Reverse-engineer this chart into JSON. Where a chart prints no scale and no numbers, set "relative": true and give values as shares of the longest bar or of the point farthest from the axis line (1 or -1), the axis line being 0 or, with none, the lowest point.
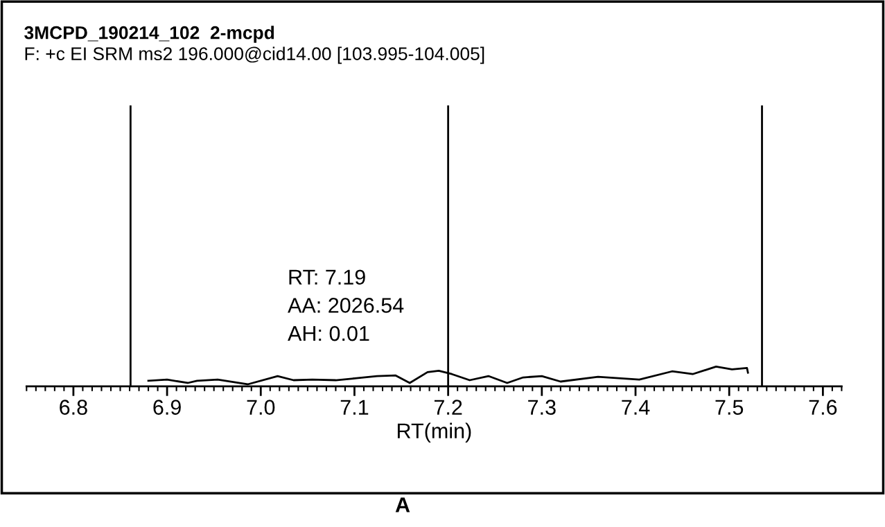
{
  "chart_data": {
    "type": "line",
    "title": "3MCPD_190214_102  2-mcpd",
    "subtitle": "F: +c EI SRM ms2 196.000@cid14.00 [103.995-104.005]",
    "xlabel": "RT(min)",
    "relative": true,
    "x": [
      6.88,
      6.9,
      6.922,
      6.932,
      6.954,
      6.986,
      7.018,
      7.035,
      7.055,
      7.08,
      7.102,
      7.124,
      7.144,
      7.159,
      7.178,
      7.19,
      7.204,
      7.223,
      7.243,
      7.263,
      7.28,
      7.3,
      7.32,
      7.36,
      7.404,
      7.439,
      7.461,
      7.486,
      7.503,
      7.519,
      7.52
    ],
    "series": [
      {
        "color": "#000000",
        "values": [
          0.28,
          0.34,
          0.17,
          0.28,
          0.34,
          0.1,
          0.52,
          0.31,
          0.34,
          0.31,
          0.41,
          0.52,
          0.55,
          0.17,
          0.72,
          0.79,
          0.62,
          0.31,
          0.52,
          0.17,
          0.45,
          0.52,
          0.24,
          0.48,
          0.34,
          0.76,
          0.62,
          1.0,
          0.86,
          0.93,
          0.69
        ]
      }
    ],
    "xlim": [
      6.75,
      7.62
    ],
    "xticks": [
      6.8,
      6.9,
      {
        "value": 7.0,
        "label": "7.0"
      },
      7.1,
      7.2,
      7.3,
      7.4,
      7.5,
      7.6
    ],
    "ref_lines": [
      {
        "axis": "x",
        "value": 6.861,
        "color": "#000000"
      },
      {
        "axis": "x",
        "value": 7.2,
        "color": "#000000"
      },
      {
        "axis": "x",
        "value": 7.535,
        "color": "#000000"
      }
    ],
    "annotations": [
      "RT: 7.19\nAA: 2026.54\nAH: 0.01",
      "A"
    ],
    "grid": false,
    "legend": false,
    "marker": "none",
    "line_style": "solid"
  }
}
